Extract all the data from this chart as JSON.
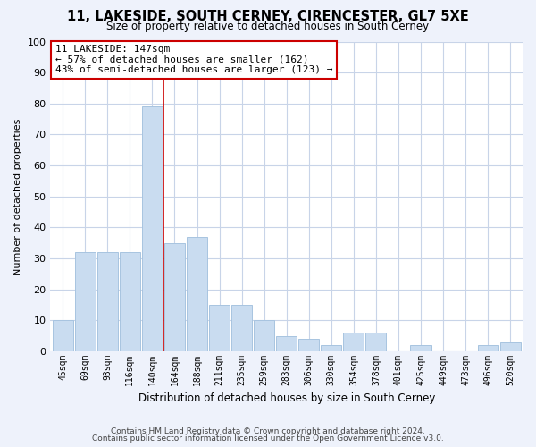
{
  "title_line1": "11, LAKESIDE, SOUTH CERNEY, CIRENCESTER, GL7 5XE",
  "title_line2": "Size of property relative to detached houses in South Cerney",
  "xlabel": "Distribution of detached houses by size in South Cerney",
  "ylabel": "Number of detached properties",
  "categories": [
    "45sqm",
    "69sqm",
    "93sqm",
    "116sqm",
    "140sqm",
    "164sqm",
    "188sqm",
    "211sqm",
    "235sqm",
    "259sqm",
    "283sqm",
    "306sqm",
    "330sqm",
    "354sqm",
    "378sqm",
    "401sqm",
    "425sqm",
    "449sqm",
    "473sqm",
    "496sqm",
    "520sqm"
  ],
  "values": [
    10,
    32,
    32,
    32,
    79,
    35,
    37,
    15,
    15,
    10,
    5,
    4,
    2,
    6,
    6,
    0,
    2,
    0,
    0,
    2,
    3
  ],
  "bar_color": "#c9dcf0",
  "bar_edge_color": "#a8c4e0",
  "vline_color": "#cc0000",
  "annotation_text": "11 LAKESIDE: 147sqm\n← 57% of detached houses are smaller (162)\n43% of semi-detached houses are larger (123) →",
  "annotation_box_color": "white",
  "annotation_box_edge_color": "#cc0000",
  "ylim": [
    0,
    100
  ],
  "yticks": [
    0,
    10,
    20,
    30,
    40,
    50,
    60,
    70,
    80,
    90,
    100
  ],
  "footer_line1": "Contains HM Land Registry data © Crown copyright and database right 2024.",
  "footer_line2": "Contains public sector information licensed under the Open Government Licence v3.0.",
  "background_color": "#eef2fb",
  "plot_background": "white",
  "grid_color": "#c8d4e8"
}
